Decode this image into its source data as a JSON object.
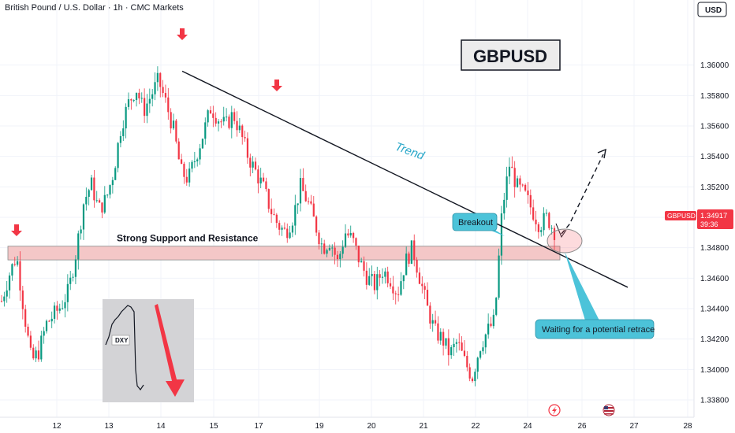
{
  "header": {
    "title": "British Pound / U.S. Dollar · 1h · CMC Markets",
    "currency": "USD"
  },
  "chart_data": {
    "type": "candlestick",
    "title": "GBPUSD",
    "ylim": [
      1.338,
      1.362
    ],
    "x_ticks": [
      "12",
      "13",
      "14",
      "15",
      "17",
      "19",
      "20",
      "21",
      "22",
      "24",
      "26",
      "27",
      "28"
    ],
    "y_ticks": [
      "1.36000",
      "1.35800",
      "1.35600",
      "1.35400",
      "1.35200",
      "1.35000",
      "1.34800",
      "1.34600",
      "1.34400",
      "1.34200",
      "1.34000",
      "1.33800"
    ],
    "last_price": {
      "symbol": "GBPUSD",
      "value": "1.34917",
      "countdown": "39:36"
    },
    "support_zone": {
      "label": "Strong Support and Resistance",
      "low": 1.3472,
      "high": 1.3481
    },
    "trend_line": {
      "label": "Trend",
      "start_price": 1.3596,
      "end_price": 1.3454
    },
    "annotations": {
      "breakout": "Breakout",
      "retrace": "Waiting for a potential retrace"
    },
    "inset": {
      "label": "DXY"
    },
    "colors": {
      "up": "#089981",
      "down": "#f23645",
      "zone": "#f4c7c7",
      "callout": "#4cc3d9",
      "trend_text": "#2aa7c9"
    },
    "price_path": [
      1.3445,
      1.3462,
      1.3475,
      1.3438,
      1.3405,
      1.3412,
      1.343,
      1.3436,
      1.3442,
      1.3452,
      1.3478,
      1.351,
      1.3522,
      1.3505,
      1.3512,
      1.353,
      1.356,
      1.3575,
      1.3585,
      1.357,
      1.358,
      1.359,
      1.3575,
      1.3558,
      1.353,
      1.3525,
      1.354,
      1.3555,
      1.3572,
      1.3565,
      1.356,
      1.3568,
      1.3555,
      1.354,
      1.353,
      1.352,
      1.3505,
      1.3495,
      1.349,
      1.35,
      1.352,
      1.351,
      1.3495,
      1.348,
      1.3485,
      1.347,
      1.349,
      1.3485,
      1.347,
      1.346,
      1.3455,
      1.3465,
      1.346,
      1.345,
      1.347,
      1.348,
      1.346,
      1.344,
      1.3425,
      1.342,
      1.341,
      1.3418,
      1.3405,
      1.3395,
      1.3415,
      1.3425,
      1.3432,
      1.3505,
      1.3535,
      1.352,
      1.3515,
      1.3505,
      1.3495,
      1.35,
      1.3491
    ]
  }
}
